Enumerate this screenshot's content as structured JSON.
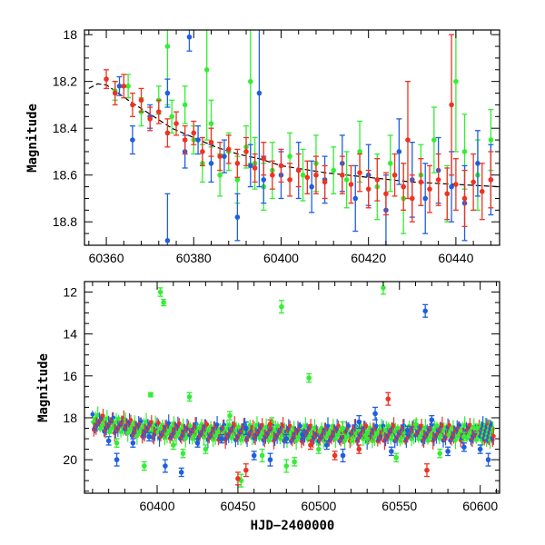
{
  "chart_data": [
    {
      "type": "scatter",
      "ylabel": "Magnitude",
      "xlabel": "",
      "xlim": [
        60355,
        60450
      ],
      "ylim": [
        18.9,
        17.98
      ],
      "y_inverted": true,
      "xticks": [
        60360,
        60380,
        60400,
        60420,
        60440
      ],
      "yticks": [
        18,
        18.2,
        18.4,
        18.6,
        18.8
      ],
      "x_minor": 4,
      "y_minor": 0.05,
      "grid": false,
      "model_curve": {
        "x": [
          60356,
          60358,
          60360,
          60362,
          60365,
          60370,
          60375,
          60380,
          60385,
          60390,
          60395,
          60400,
          60410,
          60420,
          60430,
          60440,
          60450
        ],
        "y": [
          18.23,
          18.21,
          18.215,
          18.24,
          18.28,
          18.34,
          18.4,
          18.44,
          18.48,
          18.51,
          18.53,
          18.56,
          18.59,
          18.61,
          18.63,
          18.64,
          18.65
        ]
      },
      "series": [
        {
          "color": "#33ee33",
          "points": [
            [
              60362,
              18.24,
              0.04
            ],
            [
              60365,
              18.22,
              0.05
            ],
            [
              60368,
              18.33,
              0.06
            ],
            [
              60372,
              18.28,
              0.06
            ],
            [
              60375,
              18.35,
              0.07
            ],
            [
              60378,
              18.3,
              0.08
            ],
            [
              60380,
              18.45,
              0.06
            ],
            [
              60382,
              18.55,
              0.08
            ],
            [
              60384,
              18.38,
              0.1
            ],
            [
              60386,
              18.6,
              0.09
            ],
            [
              60388,
              18.5,
              0.08
            ],
            [
              60390,
              18.62,
              0.1
            ],
            [
              60392,
              18.48,
              0.09
            ],
            [
              60394,
              18.55,
              0.11
            ],
            [
              60396,
              18.65,
              0.1
            ],
            [
              60398,
              18.58,
              0.12
            ],
            [
              60402,
              18.52,
              0.1
            ],
            [
              60405,
              18.6,
              0.11
            ],
            [
              60408,
              18.55,
              0.12
            ],
            [
              60412,
              18.58,
              0.1
            ],
            [
              60415,
              18.62,
              0.12
            ],
            [
              60418,
              18.5,
              0.13
            ],
            [
              60422,
              18.65,
              0.14
            ],
            [
              60425,
              18.55,
              0.12
            ],
            [
              60428,
              18.7,
              0.15
            ],
            [
              60432,
              18.6,
              0.13
            ],
            [
              60435,
              18.45,
              0.14
            ],
            [
              60438,
              18.68,
              0.12
            ],
            [
              60442,
              18.5,
              0.16
            ],
            [
              60445,
              18.6,
              0.15
            ],
            [
              60448,
              18.45,
              0.13
            ],
            [
              60374,
              18.05,
              0.25
            ],
            [
              60383,
              18.15,
              0.3
            ],
            [
              60393,
              18.2,
              0.35
            ],
            [
              60440,
              18.2,
              0.3
            ]
          ]
        },
        {
          "color": "#1f5fe0",
          "points": [
            [
              60363,
              18.22,
              0.04
            ],
            [
              60366,
              18.45,
              0.06
            ],
            [
              60370,
              18.35,
              0.05
            ],
            [
              60374,
              18.25,
              0.06
            ],
            [
              60378,
              18.5,
              0.07
            ],
            [
              60381,
              18.45,
              0.06
            ],
            [
              60384,
              18.55,
              0.08
            ],
            [
              60387,
              18.52,
              0.07
            ],
            [
              60390,
              18.78,
              0.1
            ],
            [
              60393,
              18.56,
              0.09
            ],
            [
              60396,
              18.62,
              0.1
            ],
            [
              60400,
              18.6,
              0.1
            ],
            [
              60404,
              18.58,
              0.12
            ],
            [
              60407,
              18.65,
              0.11
            ],
            [
              60410,
              18.62,
              0.1
            ],
            [
              60414,
              18.55,
              0.12
            ],
            [
              60417,
              18.7,
              0.14
            ],
            [
              60420,
              18.6,
              0.13
            ],
            [
              60424,
              18.75,
              0.15
            ],
            [
              60427,
              18.5,
              0.14
            ],
            [
              60430,
              18.62,
              0.16
            ],
            [
              60433,
              18.7,
              0.15
            ],
            [
              60436,
              18.58,
              0.14
            ],
            [
              60439,
              18.65,
              0.15
            ],
            [
              60442,
              18.72,
              0.16
            ],
            [
              60445,
              18.55,
              0.14
            ],
            [
              60448,
              18.62,
              0.15
            ],
            [
              60379,
              18.01,
              0.06
            ],
            [
              60395,
              18.25,
              0.4
            ],
            [
              60374,
              18.88,
              0.2
            ]
          ]
        },
        {
          "color": "#ee3322",
          "points": [
            [
              60360,
              18.19,
              0.04
            ],
            [
              60362,
              18.25,
              0.05
            ],
            [
              60364,
              18.22,
              0.05
            ],
            [
              60366,
              18.3,
              0.05
            ],
            [
              60368,
              18.28,
              0.05
            ],
            [
              60370,
              18.36,
              0.05
            ],
            [
              60372,
              18.33,
              0.05
            ],
            [
              60374,
              18.42,
              0.06
            ],
            [
              60376,
              18.38,
              0.05
            ],
            [
              60378,
              18.45,
              0.06
            ],
            [
              60380,
              18.42,
              0.05
            ],
            [
              60382,
              18.5,
              0.06
            ],
            [
              60384,
              18.46,
              0.06
            ],
            [
              60386,
              18.52,
              0.06
            ],
            [
              60388,
              18.49,
              0.06
            ],
            [
              60390,
              18.55,
              0.06
            ],
            [
              60392,
              18.5,
              0.06
            ],
            [
              60394,
              18.57,
              0.06
            ],
            [
              60396,
              18.53,
              0.07
            ],
            [
              60398,
              18.6,
              0.06
            ],
            [
              60400,
              18.56,
              0.07
            ],
            [
              60402,
              18.62,
              0.07
            ],
            [
              60404,
              18.58,
              0.07
            ],
            [
              60406,
              18.61,
              0.07
            ],
            [
              60408,
              18.6,
              0.08
            ],
            [
              60410,
              18.63,
              0.07
            ],
            [
              60414,
              18.6,
              0.08
            ],
            [
              60416,
              18.64,
              0.08
            ],
            [
              60418,
              18.59,
              0.08
            ],
            [
              60420,
              18.66,
              0.08
            ],
            [
              60422,
              18.62,
              0.09
            ],
            [
              60424,
              18.68,
              0.09
            ],
            [
              60426,
              18.6,
              0.09
            ],
            [
              60428,
              18.65,
              0.1
            ],
            [
              60430,
              18.7,
              0.1
            ],
            [
              60432,
              18.63,
              0.1
            ],
            [
              60434,
              18.66,
              0.1
            ],
            [
              60436,
              18.62,
              0.11
            ],
            [
              60438,
              18.68,
              0.11
            ],
            [
              60440,
              18.64,
              0.11
            ],
            [
              60442,
              18.7,
              0.12
            ],
            [
              60444,
              18.63,
              0.12
            ],
            [
              60446,
              18.67,
              0.12
            ],
            [
              60448,
              18.62,
              0.12
            ],
            [
              60429,
              18.45,
              0.25
            ],
            [
              60439,
              18.3,
              0.3
            ]
          ]
        }
      ]
    },
    {
      "type": "scatter",
      "ylabel": "Magnitude",
      "xlabel": "HJD−2400000",
      "xlim": [
        60355,
        60612
      ],
      "ylim": [
        21.6,
        11.5
      ],
      "y_inverted": true,
      "xticks": [
        60400,
        60450,
        60500,
        60550,
        60600
      ],
      "yticks": [
        12,
        14,
        16,
        18,
        20
      ],
      "x_minor": 10,
      "y_minor": 0.5,
      "grid": false,
      "series": [
        {
          "color": "#33ee33",
          "points": [
            [
              60375,
              19.2,
              0.2
            ],
            [
              60392,
              20.3,
              0.2
            ],
            [
              60396,
              16.9,
              0.1
            ],
            [
              60402,
              12.0,
              0.2
            ],
            [
              60404,
              12.5,
              0.15
            ],
            [
              60410,
              19.3,
              0.2
            ],
            [
              60416,
              19.7,
              0.2
            ],
            [
              60420,
              17.0,
              0.2
            ],
            [
              60430,
              19.5,
              0.2
            ],
            [
              60445,
              17.9,
              0.2
            ],
            [
              60452,
              21.0,
              0.3
            ],
            [
              60465,
              19.8,
              0.3
            ],
            [
              60471,
              18.2,
              0.2
            ],
            [
              60477,
              12.7,
              0.3
            ],
            [
              60480,
              20.3,
              0.3
            ],
            [
              60485,
              20.1,
              0.2
            ],
            [
              60494,
              16.1,
              0.2
            ],
            [
              60500,
              19.5,
              0.2
            ],
            [
              60515,
              18.5,
              0.3
            ],
            [
              60530,
              19.0,
              0.2
            ],
            [
              60540,
              11.8,
              0.3
            ],
            [
              60548,
              19.9,
              0.2
            ],
            [
              60560,
              18.3,
              0.2
            ],
            [
              60575,
              19.7,
              0.2
            ],
            [
              60590,
              18.9,
              0.2
            ],
            [
              60598,
              18.5,
              0.2
            ]
          ]
        },
        {
          "color": "#1f5fe0",
          "points": [
            [
              60370,
              19.1,
              0.2
            ],
            [
              60375,
              20.0,
              0.3
            ],
            [
              60385,
              19.2,
              0.2
            ],
            [
              60395,
              18.9,
              0.2
            ],
            [
              60405,
              20.3,
              0.3
            ],
            [
              60415,
              20.6,
              0.2
            ],
            [
              60425,
              19.2,
              0.2
            ],
            [
              60440,
              19.0,
              0.2
            ],
            [
              60455,
              18.5,
              0.3
            ],
            [
              60460,
              19.8,
              0.2
            ],
            [
              60470,
              20.0,
              0.3
            ],
            [
              60480,
              19.0,
              0.2
            ],
            [
              60490,
              18.8,
              0.2
            ],
            [
              60505,
              19.3,
              0.2
            ],
            [
              60515,
              19.8,
              0.3
            ],
            [
              60525,
              18.2,
              0.3
            ],
            [
              60535,
              17.8,
              0.3
            ],
            [
              60545,
              19.6,
              0.2
            ],
            [
              60555,
              18.6,
              0.2
            ],
            [
              60566,
              12.9,
              0.3
            ],
            [
              60570,
              18.1,
              0.2
            ],
            [
              60580,
              19.6,
              0.2
            ],
            [
              60590,
              19.4,
              0.2
            ],
            [
              60600,
              19.5,
              0.2
            ],
            [
              60605,
              20.0,
              0.3
            ]
          ]
        },
        {
          "color": "#ee3322",
          "points": [
            [
              60450,
              20.9,
              0.3
            ],
            [
              60455,
              20.5,
              0.3
            ],
            [
              60470,
              18.3,
              0.2
            ],
            [
              60510,
              19.8,
              0.2
            ],
            [
              60525,
              19.5,
              0.2
            ],
            [
              60543,
              17.1,
              0.3
            ],
            [
              60567,
              20.5,
              0.3
            ],
            [
              60495,
              19.3,
              0.2
            ]
          ]
        }
      ],
      "dense_band": [
        [
          60360,
          18.2
        ],
        [
          60380,
          18.45
        ],
        [
          60400,
          18.6
        ],
        [
          60420,
          18.65
        ],
        [
          60440,
          18.7
        ],
        [
          60460,
          18.7
        ],
        [
          60480,
          18.75
        ],
        [
          60500,
          18.75
        ],
        [
          60520,
          18.75
        ],
        [
          60540,
          18.75
        ],
        [
          60560,
          18.75
        ],
        [
          60580,
          18.72
        ],
        [
          60600,
          18.7
        ],
        [
          60608,
          18.7
        ]
      ]
    }
  ],
  "colors": {
    "green": "#33ee33",
    "blue": "#1f5fe0",
    "red": "#ee3322",
    "model": "#000000"
  }
}
